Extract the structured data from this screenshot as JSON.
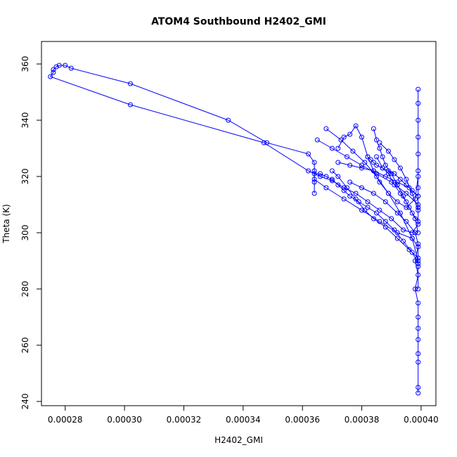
{
  "chart_data": {
    "type": "line",
    "title": "ATOM4 Southbound H2402_GMI",
    "xlabel": "H2402_GMI",
    "ylabel": "Theta (K)",
    "xlim": [
      0.000272,
      0.000405
    ],
    "ylim": [
      238.5,
      368
    ],
    "xticks": [
      {
        "value": 0.00028,
        "label": "0.00028"
      },
      {
        "value": 0.0003,
        "label": "0.00030"
      },
      {
        "value": 0.00032,
        "label": "0.00032"
      },
      {
        "value": 0.00034,
        "label": "0.00034"
      },
      {
        "value": 0.00036,
        "label": "0.00036"
      },
      {
        "value": 0.00038,
        "label": "0.00038"
      },
      {
        "value": 0.0004,
        "label": "0.00040"
      }
    ],
    "yticks": [
      {
        "value": 240,
        "label": "240"
      },
      {
        "value": 260,
        "label": "260"
      },
      {
        "value": 280,
        "label": "280"
      },
      {
        "value": 300,
        "label": "300"
      },
      {
        "value": 320,
        "label": "320"
      },
      {
        "value": 340,
        "label": "340"
      },
      {
        "value": 360,
        "label": "360"
      }
    ],
    "grid": false,
    "series_color": "#0000ff",
    "marker": "open-circle",
    "series": [
      {
        "points": [
          [
            0.000399,
            243
          ],
          [
            0.000399,
            245
          ],
          [
            0.000399,
            254
          ],
          [
            0.000399,
            257
          ],
          [
            0.000399,
            262
          ],
          [
            0.000399,
            266
          ],
          [
            0.000399,
            270
          ],
          [
            0.000399,
            275
          ],
          [
            0.000398,
            280
          ],
          [
            0.000399,
            285
          ],
          [
            0.000398,
            290
          ],
          [
            0.000399,
            295
          ],
          [
            0.000397,
            298
          ],
          [
            0.000392,
            300
          ],
          [
            0.000386,
            304
          ],
          [
            0.00038,
            308
          ],
          [
            0.000374,
            312
          ],
          [
            0.000368,
            316
          ],
          [
            0.000364,
            319
          ],
          [
            0.000364,
            322
          ],
          [
            0.000364,
            325
          ],
          [
            0.000362,
            328
          ],
          [
            0.000348,
            332
          ],
          [
            0.000335,
            340
          ],
          [
            0.000302,
            353
          ],
          [
            0.000282,
            358.5
          ],
          [
            0.00028,
            359.5
          ],
          [
            0.000278,
            359.5
          ],
          [
            0.000277,
            359
          ],
          [
            0.000276,
            358
          ],
          [
            0.000276,
            357
          ],
          [
            0.000275,
            355.5
          ],
          [
            0.000302,
            345.5
          ],
          [
            0.000347,
            332
          ],
          [
            0.000362,
            322
          ],
          [
            0.000366,
            320
          ],
          [
            0.00037,
            318.5
          ],
          [
            0.000374,
            316
          ],
          [
            0.000378,
            314
          ],
          [
            0.000382,
            311
          ],
          [
            0.000386,
            308
          ],
          [
            0.00039,
            305
          ],
          [
            0.000394,
            301
          ],
          [
            0.000397,
            300
          ],
          [
            0.000399,
            303
          ],
          [
            0.000399,
            309
          ],
          [
            0.000399,
            316
          ],
          [
            0.000399,
            322
          ],
          [
            0.000399,
            328
          ],
          [
            0.000399,
            334
          ],
          [
            0.000399,
            340
          ],
          [
            0.000399,
            346
          ],
          [
            0.000399,
            351
          ]
        ]
      },
      {
        "points": [
          [
            0.000365,
            333
          ],
          [
            0.00037,
            330
          ],
          [
            0.000375,
            327
          ],
          [
            0.00038,
            324
          ],
          [
            0.000385,
            321
          ],
          [
            0.00039,
            318
          ],
          [
            0.000395,
            314
          ],
          [
            0.000399,
            310
          ]
        ]
      },
      {
        "points": [
          [
            0.000368,
            337
          ],
          [
            0.000373,
            333
          ],
          [
            0.000377,
            329
          ],
          [
            0.000381,
            325
          ],
          [
            0.000385,
            320
          ],
          [
            0.000389,
            314
          ],
          [
            0.000393,
            307
          ],
          [
            0.000397,
            298
          ],
          [
            0.000399,
            290
          ]
        ]
      },
      {
        "points": [
          [
            0.00037,
            322
          ],
          [
            0.000372,
            320
          ],
          [
            0.000375,
            316
          ],
          [
            0.000378,
            312
          ],
          [
            0.000381,
            308
          ],
          [
            0.000384,
            305
          ],
          [
            0.000388,
            302
          ],
          [
            0.000392,
            298
          ],
          [
            0.000396,
            294
          ],
          [
            0.000399,
            291
          ]
        ]
      },
      {
        "points": [
          [
            0.000372,
            330
          ],
          [
            0.000374,
            334
          ],
          [
            0.000376,
            335
          ],
          [
            0.000378,
            338
          ],
          [
            0.00038,
            334
          ],
          [
            0.000382,
            327
          ],
          [
            0.000384,
            322
          ],
          [
            0.000386,
            318
          ],
          [
            0.000389,
            314
          ],
          [
            0.000392,
            311
          ],
          [
            0.000395,
            309
          ],
          [
            0.000398,
            312
          ],
          [
            0.000399,
            320
          ]
        ]
      },
      {
        "points": [
          [
            0.000384,
            337
          ],
          [
            0.000385,
            333
          ],
          [
            0.000386,
            330
          ],
          [
            0.000387,
            327
          ],
          [
            0.000388,
            324
          ],
          [
            0.00039,
            321
          ],
          [
            0.000392,
            317
          ],
          [
            0.000394,
            313
          ],
          [
            0.000396,
            309
          ],
          [
            0.000398,
            305
          ],
          [
            0.000399,
            300
          ]
        ]
      },
      {
        "points": [
          [
            0.000376,
            318
          ],
          [
            0.00038,
            316
          ],
          [
            0.000384,
            314
          ],
          [
            0.000388,
            311
          ],
          [
            0.000392,
            307
          ],
          [
            0.000395,
            304
          ],
          [
            0.000398,
            300
          ],
          [
            0.000399,
            296
          ],
          [
            0.000399,
            288
          ],
          [
            0.000399,
            280
          ]
        ]
      },
      {
        "points": [
          [
            0.000385,
            327
          ],
          [
            0.000387,
            323
          ],
          [
            0.000389,
            321
          ],
          [
            0.000391,
            317
          ],
          [
            0.000393,
            314
          ],
          [
            0.000395,
            311
          ],
          [
            0.000397,
            307
          ],
          [
            0.000399,
            304
          ]
        ]
      },
      {
        "points": [
          [
            0.000364,
            314
          ],
          [
            0.000364,
            318
          ],
          [
            0.000364,
            321
          ],
          [
            0.000366,
            321
          ],
          [
            0.000368,
            320
          ],
          [
            0.00037,
            319
          ],
          [
            0.000372,
            317
          ],
          [
            0.000374,
            315
          ],
          [
            0.000376,
            313
          ],
          [
            0.000379,
            311
          ],
          [
            0.000382,
            309
          ],
          [
            0.000385,
            307
          ],
          [
            0.000388,
            304
          ],
          [
            0.000391,
            301
          ],
          [
            0.000394,
            297
          ],
          [
            0.000397,
            293
          ],
          [
            0.000399,
            289
          ]
        ]
      },
      {
        "points": [
          [
            0.000386,
            332
          ],
          [
            0.000389,
            329
          ],
          [
            0.000391,
            326
          ],
          [
            0.000393,
            323
          ],
          [
            0.000395,
            319
          ],
          [
            0.000397,
            314
          ],
          [
            0.000399,
            308
          ]
        ]
      },
      {
        "points": [
          [
            0.000372,
            325
          ],
          [
            0.000376,
            324
          ],
          [
            0.00038,
            323
          ],
          [
            0.000384,
            322
          ],
          [
            0.000388,
            320
          ],
          [
            0.000392,
            318
          ],
          [
            0.000396,
            316
          ],
          [
            0.000399,
            313
          ]
        ]
      },
      {
        "points": [
          [
            0.000382,
            327
          ],
          [
            0.000383,
            326
          ],
          [
            0.000384,
            325
          ],
          [
            0.000385,
            324
          ],
          [
            0.000387,
            323
          ],
          [
            0.000389,
            322
          ],
          [
            0.000391,
            321
          ],
          [
            0.000393,
            319
          ],
          [
            0.000395,
            317
          ],
          [
            0.000397,
            315
          ],
          [
            0.000399,
            313
          ]
        ]
      }
    ]
  }
}
